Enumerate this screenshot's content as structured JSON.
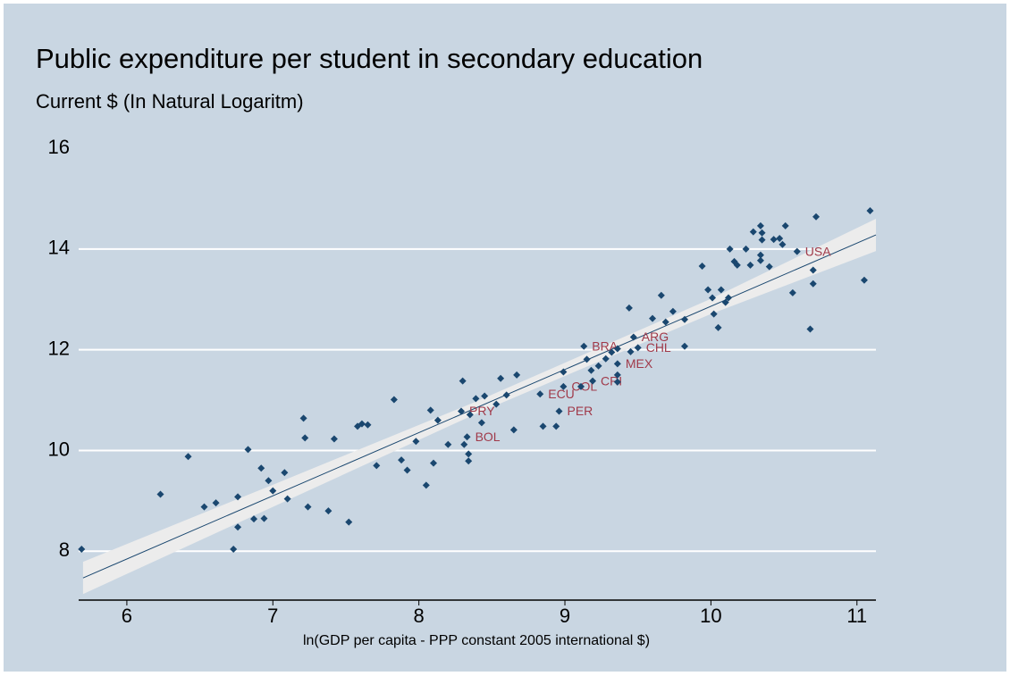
{
  "chart_data": {
    "type": "scatter",
    "title": "Public expenditure per student in secondary education",
    "subtitle": "Current $ (In Natural Logaritm)",
    "x_label": "ln(GDP per capita - PPP constant 2005 international $)",
    "xlim": [
      5.67,
      11.13
    ],
    "ylim": [
      7.03,
      16
    ],
    "xticks": [
      6,
      7,
      8,
      9,
      10,
      11
    ],
    "yticks": [
      8,
      10,
      12,
      14,
      16
    ],
    "grid": true,
    "point_color": "#1a476f",
    "label_color": "#a03a4a",
    "fit_color": "#1a476f",
    "band_color": "#ececec",
    "background": "#c9d6e2",
    "series": [
      {
        "x": [
          8.29,
          8.33,
          8.83,
          8.96,
          8.99,
          9.13,
          9.19,
          9.36,
          9.47,
          9.5,
          10.59
        ],
        "y": [
          10.78,
          10.27,
          11.12,
          10.78,
          11.27,
          12.07,
          11.38,
          11.72,
          12.25,
          12.04,
          13.95
        ],
        "labels": [
          "PRY",
          "BOL",
          "ECU",
          "PER",
          "COL",
          "BRA",
          "CRI",
          "MEX",
          "ARG",
          "CHL",
          "USA"
        ]
      },
      {
        "x": [
          5.69,
          6.23,
          6.42,
          6.53,
          6.61,
          6.73,
          6.76,
          6.76,
          6.83,
          6.87,
          6.92,
          6.94,
          6.97,
          7.0,
          7.08,
          7.1,
          7.21,
          7.22,
          7.24,
          7.38,
          7.42,
          7.52,
          7.58,
          7.61,
          7.65,
          7.71,
          7.83,
          7.88,
          7.92,
          7.98,
          8.05,
          8.08,
          8.1,
          8.13,
          8.2,
          8.3,
          8.31,
          8.34,
          8.34,
          8.35,
          8.39,
          8.45,
          8.43,
          8.53,
          8.56,
          8.6,
          8.67,
          8.65,
          8.85,
          8.94,
          8.99,
          9.11,
          9.15,
          9.18,
          9.23,
          9.28,
          9.32,
          9.36,
          9.36,
          9.36,
          9.45,
          9.44,
          9.6,
          9.66,
          9.69,
          9.74,
          9.82,
          9.82,
          9.94,
          9.98,
          10.01,
          10.02,
          10.05,
          10.07,
          10.1,
          10.12,
          10.13,
          10.16,
          10.18,
          10.24,
          10.27,
          10.29,
          10.34,
          10.35,
          10.35,
          10.34,
          10.34,
          10.4,
          10.43,
          10.47,
          10.49,
          10.51,
          10.56,
          10.72,
          10.68,
          10.7,
          10.7,
          11.05,
          11.09
        ],
        "y": [
          8.04,
          9.13,
          9.88,
          8.88,
          8.96,
          8.04,
          9.08,
          8.48,
          10.02,
          8.64,
          9.65,
          8.65,
          9.4,
          9.2,
          9.56,
          9.04,
          10.64,
          10.25,
          8.88,
          8.8,
          10.23,
          8.58,
          10.48,
          10.53,
          10.51,
          9.7,
          11.01,
          9.81,
          9.61,
          10.18,
          9.31,
          10.8,
          9.75,
          10.6,
          10.12,
          11.38,
          10.12,
          9.93,
          9.79,
          10.71,
          11.03,
          11.08,
          10.55,
          10.92,
          11.43,
          11.1,
          11.5,
          10.41,
          10.48,
          10.48,
          11.56,
          11.27,
          11.81,
          11.59,
          11.68,
          11.82,
          11.95,
          12.02,
          11.5,
          11.36,
          11.96,
          12.83,
          12.62,
          13.08,
          12.55,
          12.76,
          12.6,
          12.07,
          13.66,
          13.19,
          13.03,
          12.71,
          12.44,
          13.19,
          12.94,
          13.03,
          14.0,
          13.75,
          13.68,
          14.0,
          13.68,
          14.34,
          14.46,
          14.32,
          14.18,
          13.88,
          13.77,
          13.65,
          14.19,
          14.21,
          14.09,
          14.46,
          13.13,
          14.64,
          12.41,
          13.58,
          13.31,
          13.38,
          14.76
        ]
      }
    ],
    "fit": {
      "x": [
        5.7,
        11.13
      ],
      "y": [
        7.47,
        14.28
      ]
    },
    "ci": {
      "x": [
        5.7,
        7,
        8.4,
        10,
        11.13
      ],
      "lower": [
        7.15,
        8.88,
        10.74,
        12.71,
        13.96
      ],
      "upper": [
        7.79,
        9.32,
        10.98,
        13.01,
        14.6
      ]
    }
  }
}
